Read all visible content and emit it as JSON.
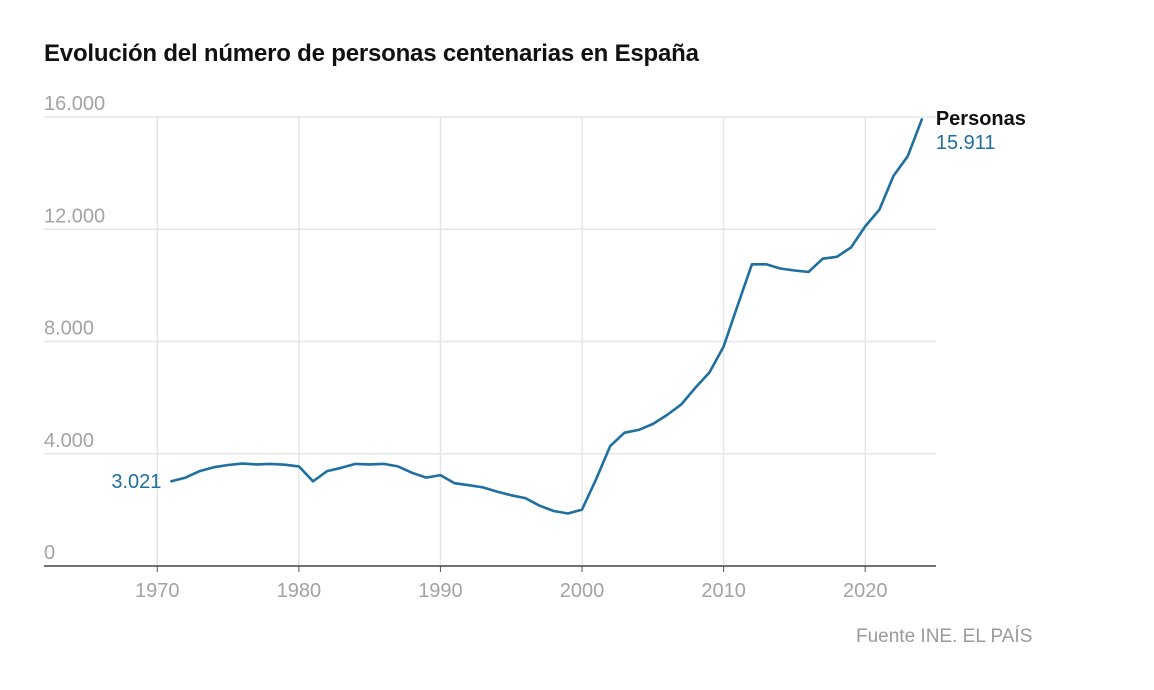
{
  "chart_data": {
    "type": "line",
    "title": "Evolución del número de personas centenarias en España",
    "xlabel": "",
    "ylabel": "",
    "xlim": [
      1962,
      2025
    ],
    "ylim": [
      0,
      16000
    ],
    "x_ticks": [
      1970,
      1980,
      1990,
      2000,
      2010,
      2020
    ],
    "x_tick_labels": [
      "1970",
      "1980",
      "1990",
      "2000",
      "2010",
      "2020"
    ],
    "y_ticks": [
      0,
      4000,
      8000,
      12000,
      16000
    ],
    "y_tick_labels": [
      "0",
      "4.000",
      "8.000",
      "12.000",
      "16.000"
    ],
    "grid": true,
    "color": "#1f6fa0",
    "series": [
      {
        "name": "Personas",
        "x": [
          1971,
          1972,
          1973,
          1974,
          1975,
          1976,
          1977,
          1978,
          1979,
          1980,
          1981,
          1982,
          1983,
          1984,
          1985,
          1986,
          1987,
          1988,
          1989,
          1990,
          1991,
          1992,
          1993,
          1994,
          1995,
          1996,
          1997,
          1998,
          1999,
          2000,
          2001,
          2002,
          2003,
          2004,
          2005,
          2006,
          2007,
          2008,
          2009,
          2010,
          2011,
          2012,
          2013,
          2014,
          2015,
          2016,
          2017,
          2018,
          2019,
          2020,
          2021,
          2022,
          2023,
          2024
        ],
        "values": [
          3021,
          3150,
          3380,
          3520,
          3600,
          3650,
          3620,
          3640,
          3610,
          3550,
          3020,
          3380,
          3500,
          3640,
          3620,
          3640,
          3550,
          3320,
          3150,
          3240,
          2950,
          2880,
          2800,
          2650,
          2520,
          2420,
          2150,
          1960,
          1870,
          2010,
          3100,
          4280,
          4750,
          4850,
          5060,
          5380,
          5750,
          6350,
          6900,
          7820,
          9300,
          10750,
          10750,
          10600,
          10530,
          10480,
          10950,
          11020,
          11350,
          12100,
          12700,
          13900,
          14600,
          15911
        ]
      }
    ],
    "annotations": {
      "series_label": "Personas",
      "end_value_label": "15.911",
      "start_value_label": "3.021"
    },
    "source": "Fuente INE. EL PAÍS"
  }
}
